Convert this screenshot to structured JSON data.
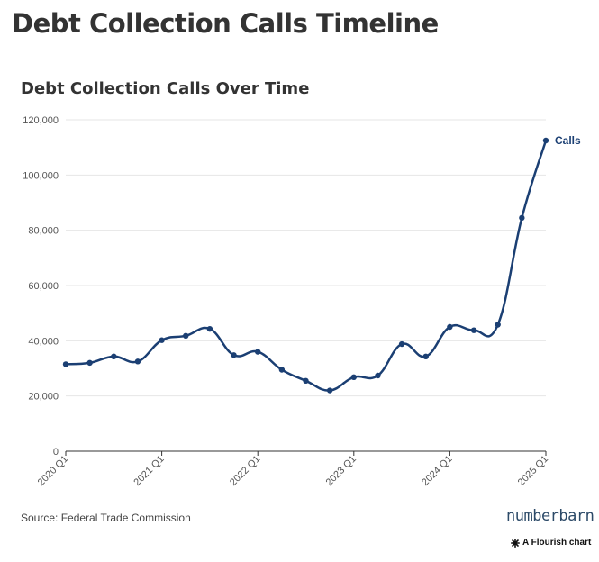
{
  "page": {
    "title": "Debt Collection Calls Timeline",
    "source": "Source: Federal Trade Commission",
    "brand": "numberbarn",
    "credit": "A Flourish chart"
  },
  "colors": {
    "series": "#1b3f73",
    "grid": "#e6e6e6",
    "axis": "#333333",
    "text": "#333333"
  },
  "icons": {
    "credit_icon": "asterisk-icon"
  },
  "chart_data": {
    "type": "line",
    "title": "Debt Collection Calls Over Time",
    "xlabel": "",
    "ylabel": "",
    "ylim": [
      0,
      120000
    ],
    "yticks": [
      0,
      20000,
      40000,
      60000,
      80000,
      100000,
      120000
    ],
    "ytick_labels": [
      "0",
      "20,000",
      "40,000",
      "60,000",
      "80,000",
      "100,000",
      "120,000"
    ],
    "xtick_labels": [
      "2020 Q1",
      "2021 Q1",
      "2022 Q1",
      "2023 Q1",
      "2024 Q1",
      "2025 Q1"
    ],
    "x": [
      "2020 Q1",
      "2020 Q2",
      "2020 Q3",
      "2020 Q4",
      "2021 Q1",
      "2021 Q2",
      "2021 Q3",
      "2021 Q4",
      "2022 Q1",
      "2022 Q2",
      "2022 Q3",
      "2022 Q4",
      "2023 Q1",
      "2023 Q2",
      "2023 Q3",
      "2023 Q4",
      "2024 Q1",
      "2024 Q2",
      "2024 Q3",
      "2024 Q4",
      "2025 Q1"
    ],
    "grid": true,
    "legend": "end-of-line label",
    "series": [
      {
        "name": "Calls",
        "values": [
          31500,
          32000,
          34300,
          32500,
          40200,
          41800,
          44300,
          34800,
          36000,
          29500,
          25500,
          22000,
          26800,
          27400,
          38800,
          34300,
          45000,
          43800,
          45800,
          84500,
          112500
        ]
      }
    ]
  }
}
